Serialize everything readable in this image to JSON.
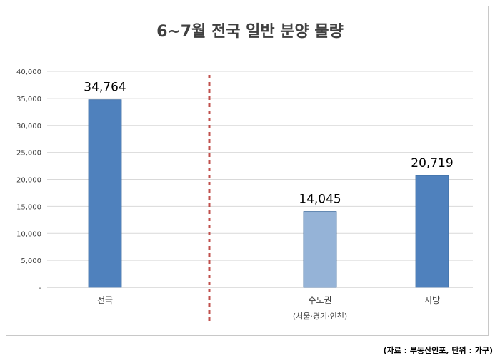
{
  "chart_data": {
    "type": "bar",
    "title": "6~7월 전국 일반 분양 물량",
    "categories": [
      "전국",
      "수도권",
      "지방"
    ],
    "category_sublabels": [
      "",
      "(서울·경기·인천)",
      ""
    ],
    "values": [
      34764,
      14045,
      20719
    ],
    "value_labels": [
      "34,764",
      "14,045",
      "20,719"
    ],
    "bar_colors": [
      "#4f81bd",
      "#95b3d7",
      "#4f81bd"
    ],
    "ylim": [
      0,
      40000
    ],
    "yticks": [
      0,
      5000,
      10000,
      15000,
      20000,
      25000,
      30000,
      35000,
      40000
    ],
    "ytick_labels": [
      "-",
      "5,000",
      "10,000",
      "15,000",
      "20,000",
      "25,000",
      "30,000",
      "35,000",
      "40,000"
    ],
    "grid": true,
    "separator_color": "#c0504d",
    "xlabel": "",
    "ylabel": ""
  },
  "source_note": "(자료 : 부동산인포, 단위 : 가구)"
}
